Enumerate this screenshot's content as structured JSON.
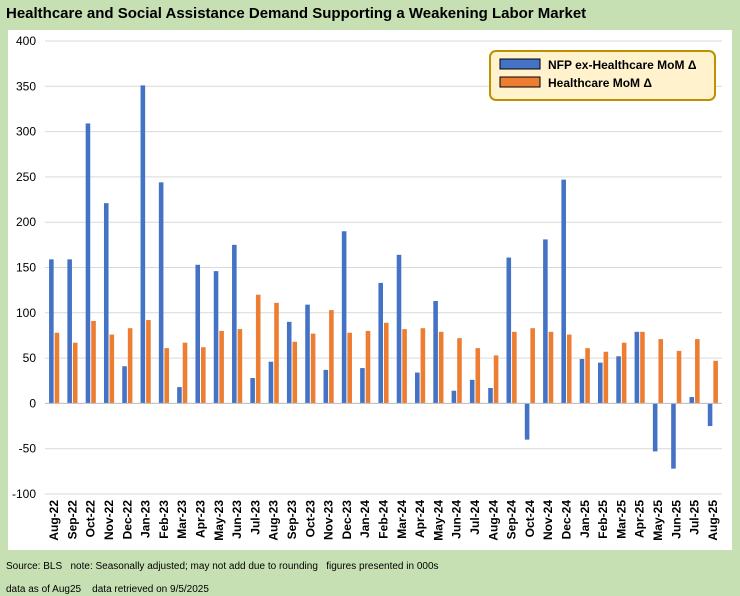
{
  "chart_data": {
    "type": "bar",
    "title": "Healthcare and Social Assistance Demand Supporting a Weakening Labor Market",
    "xlabel": "",
    "ylabel": "",
    "ylim": [
      -100,
      400
    ],
    "yticks": [
      -100,
      -50,
      0,
      50,
      100,
      150,
      200,
      250,
      300,
      350,
      400
    ],
    "grid": true,
    "legend_position": "top-right",
    "categories": [
      "Aug-22",
      "Sep-22",
      "Oct-22",
      "Nov-22",
      "Dec-22",
      "Jan-23",
      "Feb-23",
      "Mar-23",
      "Apr-23",
      "May-23",
      "Jun-23",
      "Jul-23",
      "Aug-23",
      "Sep-23",
      "Oct-23",
      "Nov-23",
      "Dec-23",
      "Jan-24",
      "Feb-24",
      "Mar-24",
      "Apr-24",
      "May-24",
      "Jun-24",
      "Jul-24",
      "Aug-24",
      "Sep-24",
      "Oct-24",
      "Nov-24",
      "Dec-24",
      "Jan-25",
      "Feb-25",
      "Mar-25",
      "Apr-25",
      "May-25",
      "Jun-25",
      "Jul-25",
      "Aug-25"
    ],
    "series": [
      {
        "name": "NFP ex-Healthcare MoM Δ",
        "color": "#4472c4",
        "values": [
          159,
          159,
          309,
          221,
          41,
          351,
          244,
          18,
          153,
          146,
          175,
          28,
          46,
          90,
          109,
          37,
          190,
          39,
          133,
          164,
          34,
          113,
          14,
          26,
          17,
          161,
          -40,
          181,
          247,
          49,
          45,
          52,
          79,
          -53,
          -72,
          7,
          -25
        ]
      },
      {
        "name": "Healthcare MoM Δ",
        "color": "#ed7d31",
        "values": [
          78,
          67,
          91,
          76,
          83,
          92,
          61,
          67,
          62,
          80,
          82,
          120,
          111,
          68,
          77,
          103,
          78,
          80,
          89,
          82,
          83,
          79,
          72,
          61,
          53,
          79,
          83,
          79,
          76,
          61,
          57,
          67,
          79,
          71,
          58,
          71,
          47
        ]
      }
    ]
  },
  "footer": {
    "line1": "Source: BLS   note: Seasonally adjusted; may not add due to rounding   figures presented in 000s",
    "line2": "data as of Aug25    data retrieved on 9/5/2025"
  }
}
